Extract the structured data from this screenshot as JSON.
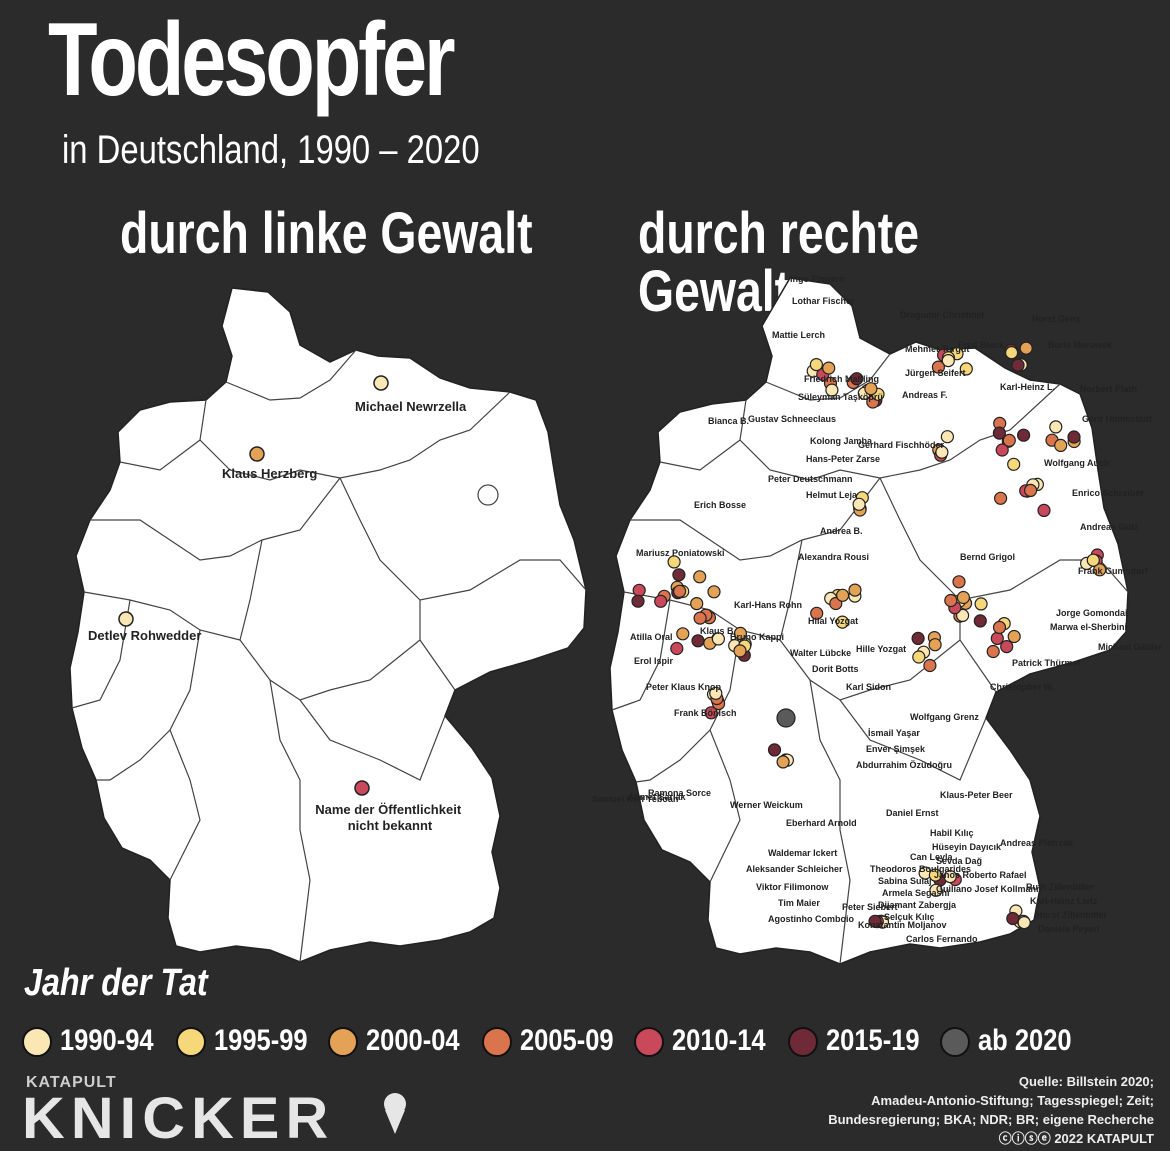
{
  "title": "Todesopfer",
  "subtitle": "in Deutschland, 1990 – 2020",
  "left_heading": "durch linke Gewalt",
  "right_heading": "durch rechte Gewalt",
  "legend": {
    "title": "Jahr der Tat",
    "items": [
      {
        "label": "1990-94",
        "color": "#fbe7b4"
      },
      {
        "label": "1995-99",
        "color": "#f6d77a"
      },
      {
        "label": "2000-04",
        "color": "#e4a257"
      },
      {
        "label": "2005-09",
        "color": "#d9744c"
      },
      {
        "label": "2010-14",
        "color": "#c9495a"
      },
      {
        "label": "2015-19",
        "color": "#6e2a36"
      },
      {
        "label": "ab 2020",
        "color": "#5a5a5a"
      }
    ]
  },
  "left_map_victims": [
    {
      "name": "Michael Newrzella",
      "period": "1990-94"
    },
    {
      "name": "Klaus Herzberg",
      "period": "2000-04"
    },
    {
      "name": "Detlev Rohwedder",
      "period": "1990-94"
    },
    {
      "name": "Name der Öffentlichkeit nicht bekannt",
      "period": "2010-14"
    }
  ],
  "right_map_labels": [
    "Ingo Finnern",
    "Lothar Fischer",
    "Mattie Lerch",
    "Dragomir Christinel",
    "Horst Gens",
    "Mehmet Turgut",
    "Fred Bleck",
    "Boris Morawek",
    "Karl-Heinz L.",
    "Norbert Plath",
    "Jürgen Seifert",
    "Andreas F.",
    "Friedrich Maßling",
    "Süleyman Taşköprü",
    "Gerd Himmstädt",
    "Gustav Schneeclaus",
    "Bianca B.",
    "Kolong Jamba",
    "Gerhard Fischhöder",
    "Hans-Peter Zarse",
    "Wolfgang Auch",
    "Peter Deutschmann",
    "Helmut Leja",
    "Andrea B.",
    "Enrico Schreiber",
    "Erich Bosse",
    "Andreas Gütz",
    "Frank Gumsdorf",
    "Alexandra Rousi",
    "Bernd Grigol",
    "Mariusz Poniatowski",
    "Karl-Hans Rohn",
    "Klaus B.",
    "Bruno Kappi",
    "Hilal Yozgat",
    "Walter Lübcke",
    "Hille Yozgat",
    "Karl Sidon",
    "Atilla Oral",
    "Erol Ispir",
    "Peter Klaus Knop",
    "Jorge Gomondai",
    "Marwa el-Sherbini",
    "Christopher W.",
    "Michael Gäbler",
    "Frank Bönisch",
    "Dorit Botts",
    "Patrick Thürmer",
    "Wolfgang Grenz",
    "Ahmet Sarlak",
    "Samuel Kofi Yeboah",
    "Ramona Sorce",
    "Werner Weickum",
    "Eberhard Arnold",
    "İsmail Yaşar",
    "Enver Şimşek",
    "Abdurrahim Özüdoğru",
    "Klaus-Peter Beer",
    "Daniel Ernst",
    "Andreas Pietrzak",
    "Waldemar Ickert",
    "Aleksander Schleicher",
    "Viktor Filimonow",
    "Tim Maier",
    "Peter Siebert",
    "Habil Kılıç",
    "Hüseyin Dayıcık",
    "Sevda Dağ",
    "Janos Roberto Rafael",
    "Guiliano Josef Kollmann",
    "Can Leyla",
    "Theodoros Boulgarides",
    "Sabina Sulaj",
    "Armela Segashi",
    "Dijamant Zabergja",
    "Selçuk Kılıç",
    "Carlos Fernando",
    "Konstantin Moljanov",
    "Agostinho Comboio",
    "Ruth Zillenbiller",
    "Karl-Heinz Lietz",
    "Horst Zillenbiller",
    "Daniela Peyerl"
  ],
  "brand": {
    "top": "KATAPULT",
    "main": "KNICKER"
  },
  "source": [
    "Quelle: Billstein 2020;",
    "Amadeu-Antonio-Stiftung; Tagesspiegel; Zeit;",
    "Bundesregierung; BKA; NDR; BR; eigene Recherche",
    "2022 KATAPULT"
  ]
}
